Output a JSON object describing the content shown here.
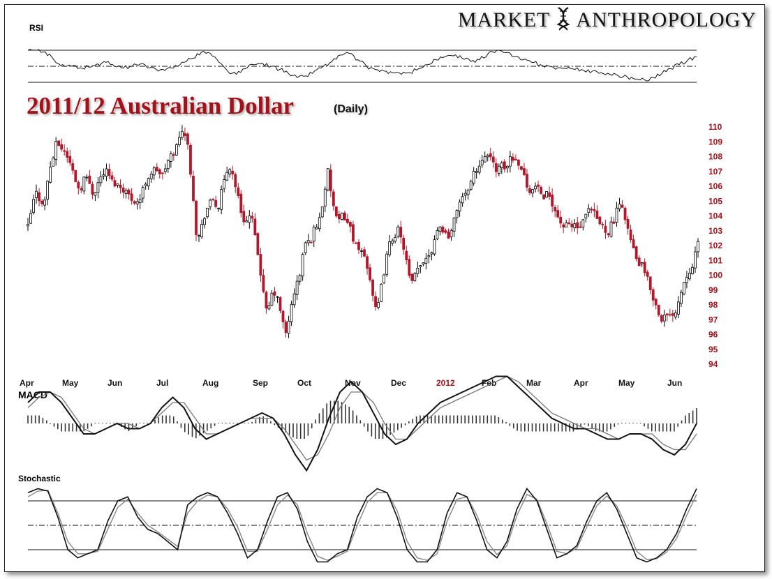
{
  "brand": {
    "word1": "Market",
    "word2": "Anthropology",
    "logo_icon": "dna-helix-icon"
  },
  "chart_data": [
    {
      "type": "candlestick",
      "title": "2011/12 Australian Dollar",
      "subtitle": "(Daily)",
      "y_ticks": [
        110,
        109,
        108,
        107,
        106,
        105,
        104,
        103,
        102,
        101,
        100,
        99,
        98,
        97,
        96,
        95,
        94
      ],
      "ylim": [
        94,
        110
      ],
      "x_ticks": [
        "Apr",
        "May",
        "Jun",
        "Jul",
        "Aug",
        "Sep",
        "Oct",
        "Nov",
        "Dec",
        "2012",
        "Feb",
        "Mar",
        "Apr",
        "May",
        "Jun"
      ],
      "x_tick_highlight": "2012",
      "colors": {
        "up": "#000000",
        "down": "#b3182a",
        "axis_text": "#a3121a"
      },
      "closes": [
        [
          0,
          103.2
        ],
        [
          5,
          104.4
        ],
        [
          10,
          105.6
        ],
        [
          16,
          105.0
        ],
        [
          22,
          104.9
        ],
        [
          27,
          106.8
        ],
        [
          33,
          107.9
        ],
        [
          38,
          109.0
        ],
        [
          44,
          108.5
        ],
        [
          50,
          108.2
        ],
        [
          56,
          107.4
        ],
        [
          62,
          106.5
        ],
        [
          68,
          105.6
        ],
        [
          74,
          106.6
        ],
        [
          80,
          106.3
        ],
        [
          86,
          105.4
        ],
        [
          92,
          106.2
        ],
        [
          98,
          106.8
        ],
        [
          104,
          107.0
        ],
        [
          110,
          106.3
        ],
        [
          116,
          106.1
        ],
        [
          122,
          105.9
        ],
        [
          128,
          105.7
        ],
        [
          134,
          105.2
        ],
        [
          140,
          105.0
        ],
        [
          146,
          104.9
        ],
        [
          152,
          105.9
        ],
        [
          158,
          106.6
        ],
        [
          164,
          107.0
        ],
        [
          170,
          107.1
        ],
        [
          176,
          106.6
        ],
        [
          182,
          107.4
        ],
        [
          188,
          108.0
        ],
        [
          194,
          108.5
        ],
        [
          198,
          109.0
        ],
        [
          202,
          109.9
        ],
        [
          206,
          109.5
        ],
        [
          210,
          108.6
        ],
        [
          214,
          106.8
        ],
        [
          218,
          104.8
        ],
        [
          222,
          102.2
        ],
        [
          226,
          102.8
        ],
        [
          230,
          103.6
        ],
        [
          234,
          104.4
        ],
        [
          238,
          104.6
        ],
        [
          242,
          105.2
        ],
        [
          246,
          104.7
        ],
        [
          250,
          104.5
        ],
        [
          254,
          105.5
        ],
        [
          258,
          106.3
        ],
        [
          262,
          107.0
        ],
        [
          266,
          107.3
        ],
        [
          270,
          106.5
        ],
        [
          274,
          105.8
        ],
        [
          278,
          104.6
        ],
        [
          282,
          103.9
        ],
        [
          286,
          103.5
        ],
        [
          290,
          103.9
        ],
        [
          294,
          103.8
        ],
        [
          298,
          102.5
        ],
        [
          302,
          101.4
        ],
        [
          306,
          100.0
        ],
        [
          310,
          98.4
        ],
        [
          314,
          97.2
        ],
        [
          318,
          98.2
        ],
        [
          322,
          98.9
        ],
        [
          326,
          98.6
        ],
        [
          330,
          97.9
        ],
        [
          334,
          97.0
        ],
        [
          338,
          95.8
        ],
        [
          342,
          96.7
        ],
        [
          346,
          98.1
        ],
        [
          350,
          98.6
        ],
        [
          354,
          99.6
        ],
        [
          358,
          100.1
        ],
        [
          362,
          101.8
        ],
        [
          366,
          102.3
        ],
        [
          370,
          102.0
        ],
        [
          374,
          102.9
        ],
        [
          378,
          103.2
        ],
        [
          382,
          103.6
        ],
        [
          386,
          104.5
        ],
        [
          390,
          105.8
        ],
        [
          394,
          106.9
        ],
        [
          398,
          105.6
        ],
        [
          402,
          104.4
        ],
        [
          406,
          103.5
        ],
        [
          410,
          103.6
        ],
        [
          414,
          104.2
        ],
        [
          418,
          103.6
        ],
        [
          422,
          103.4
        ],
        [
          426,
          102.6
        ],
        [
          430,
          102.1
        ],
        [
          434,
          101.4
        ],
        [
          438,
          101.6
        ],
        [
          442,
          101.2
        ],
        [
          446,
          100.5
        ],
        [
          450,
          99.6
        ],
        [
          454,
          98.3
        ],
        [
          458,
          97.2
        ],
        [
          462,
          98.6
        ],
        [
          466,
          99.7
        ],
        [
          470,
          100.9
        ],
        [
          474,
          101.9
        ],
        [
          478,
          102.4
        ],
        [
          482,
          102.7
        ],
        [
          486,
          103.0
        ],
        [
          490,
          102.3
        ],
        [
          494,
          101.8
        ],
        [
          498,
          100.6
        ],
        [
          502,
          99.4
        ],
        [
          506,
          99.5
        ],
        [
          510,
          100.2
        ],
        [
          514,
          100.4
        ],
        [
          518,
          100.9
        ],
        [
          522,
          101.1
        ],
        [
          526,
          101.4
        ],
        [
          530,
          101.6
        ],
        [
          534,
          102.5
        ],
        [
          538,
          103.1
        ],
        [
          542,
          103.2
        ],
        [
          546,
          103.0
        ],
        [
          550,
          102.6
        ],
        [
          554,
          102.7
        ],
        [
          558,
          103.2
        ],
        [
          562,
          104.2
        ],
        [
          566,
          104.9
        ],
        [
          570,
          105.2
        ],
        [
          574,
          105.2
        ],
        [
          578,
          105.9
        ],
        [
          582,
          106.3
        ],
        [
          586,
          107.0
        ],
        [
          590,
          107.0
        ],
        [
          594,
          107.6
        ],
        [
          598,
          108.1
        ],
        [
          602,
          108.2
        ],
        [
          606,
          107.8
        ],
        [
          610,
          107.6
        ],
        [
          614,
          107.2
        ],
        [
          618,
          107.1
        ],
        [
          622,
          107.3
        ],
        [
          626,
          107.2
        ],
        [
          630,
          107.3
        ],
        [
          634,
          108.1
        ],
        [
          638,
          107.8
        ],
        [
          642,
          107.6
        ],
        [
          646,
          107.6
        ],
        [
          650,
          106.9
        ],
        [
          654,
          106.2
        ],
        [
          658,
          105.8
        ],
        [
          662,
          105.6
        ],
        [
          666,
          105.9
        ],
        [
          670,
          106.0
        ],
        [
          674,
          105.2
        ],
        [
          678,
          104.8
        ],
        [
          682,
          105.5
        ],
        [
          686,
          105.3
        ],
        [
          690,
          104.6
        ],
        [
          694,
          104.1
        ],
        [
          698,
          103.7
        ],
        [
          702,
          103.3
        ],
        [
          706,
          103.2
        ],
        [
          710,
          103.4
        ],
        [
          714,
          103.2
        ],
        [
          718,
          103.4
        ],
        [
          722,
          103.1
        ],
        [
          726,
          103.2
        ],
        [
          730,
          103.6
        ],
        [
          734,
          104.1
        ],
        [
          738,
          104.3
        ],
        [
          742,
          104.3
        ],
        [
          746,
          103.8
        ],
        [
          750,
          103.5
        ],
        [
          754,
          103.3
        ],
        [
          758,
          103.0
        ],
        [
          762,
          102.9
        ],
        [
          766,
          103.4
        ],
        [
          770,
          103.6
        ],
        [
          774,
          104.4
        ],
        [
          778,
          104.6
        ],
        [
          782,
          104.5
        ],
        [
          786,
          103.5
        ],
        [
          790,
          102.6
        ],
        [
          794,
          101.9
        ],
        [
          798,
          101.1
        ],
        [
          802,
          100.8
        ],
        [
          806,
          100.6
        ],
        [
          810,
          100.1
        ],
        [
          814,
          99.6
        ],
        [
          818,
          99.0
        ],
        [
          822,
          98.3
        ],
        [
          826,
          97.7
        ],
        [
          830,
          97.2
        ],
        [
          834,
          97.0
        ],
        [
          838,
          97.3
        ],
        [
          842,
          97.0
        ],
        [
          846,
          97.4
        ],
        [
          850,
          97.5
        ],
        [
          854,
          98.2
        ],
        [
          858,
          98.9
        ],
        [
          862,
          99.6
        ],
        [
          866,
          100.1
        ],
        [
          870,
          100.4
        ],
        [
          874,
          100.9
        ],
        [
          878,
          101.7
        ],
        [
          880,
          102.0
        ]
      ]
    },
    {
      "type": "line",
      "title": "RSI",
      "series": [
        {
          "values": [
            70,
            70,
            68,
            58,
            52,
            50,
            48,
            49,
            53,
            55,
            50,
            48,
            50,
            53,
            48,
            44,
            47,
            51,
            55,
            60,
            68,
            66,
            55,
            44,
            40,
            47,
            52,
            54,
            50,
            46,
            41,
            36,
            38,
            44,
            50,
            56,
            64,
            66,
            58,
            50,
            46,
            44,
            42,
            40,
            42,
            47,
            52,
            58,
            62,
            63,
            60,
            56,
            58,
            66,
            70,
            67,
            62,
            58,
            55,
            52,
            50,
            48,
            47,
            46,
            45,
            44,
            42,
            40,
            38,
            37,
            34,
            33,
            36,
            41,
            47,
            52,
            58,
            62
          ]
        }
      ],
      "reference_lines": [
        "upper",
        "middle",
        "lower"
      ]
    },
    {
      "type": "line",
      "title": "MACD",
      "series": [
        {
          "values": [
            0.4,
            0.6,
            0.6,
            0.4,
            0.1,
            -0.2,
            -0.2,
            -0.1,
            0.0,
            -0.1,
            -0.1,
            0.0,
            0.3,
            0.5,
            0.3,
            -0.1,
            -0.3,
            -0.2,
            -0.1,
            0.0,
            0.1,
            0.2,
            0.1,
            -0.2,
            -0.6,
            -0.9,
            -0.5,
            0.1,
            0.6,
            0.8,
            0.6,
            0.2,
            -0.2,
            -0.4,
            -0.3,
            0.0,
            0.2,
            0.4,
            0.5,
            0.6,
            0.7,
            0.8,
            0.9,
            0.9,
            0.7,
            0.5,
            0.3,
            0.1,
            0.0,
            -0.1,
            -0.1,
            -0.2,
            -0.3,
            -0.3,
            -0.2,
            -0.2,
            -0.3,
            -0.5,
            -0.6,
            -0.4,
            0.0
          ]
        },
        {
          "values": [
            0.3,
            0.5,
            0.6,
            0.5,
            0.2,
            -0.1,
            -0.2,
            -0.1,
            0.0,
            0.0,
            -0.1,
            0.0,
            0.2,
            0.4,
            0.4,
            0.1,
            -0.2,
            -0.2,
            -0.1,
            0.0,
            0.1,
            0.1,
            0.1,
            -0.1,
            -0.4,
            -0.7,
            -0.6,
            -0.2,
            0.3,
            0.6,
            0.6,
            0.4,
            0.0,
            -0.3,
            -0.3,
            -0.1,
            0.1,
            0.3,
            0.4,
            0.5,
            0.6,
            0.7,
            0.8,
            0.9,
            0.8,
            0.6,
            0.4,
            0.2,
            0.1,
            0.0,
            -0.1,
            -0.1,
            -0.2,
            -0.3,
            -0.2,
            -0.2,
            -0.2,
            -0.4,
            -0.5,
            -0.5,
            -0.2
          ]
        }
      ],
      "histogram": true
    },
    {
      "type": "line",
      "title": "Stochastic",
      "series": [
        {
          "values": [
            90,
            95,
            92,
            60,
            20,
            10,
            15,
            20,
            55,
            80,
            85,
            60,
            45,
            40,
            30,
            20,
            75,
            85,
            90,
            85,
            65,
            40,
            10,
            20,
            55,
            85,
            90,
            70,
            30,
            5,
            5,
            15,
            20,
            60,
            85,
            95,
            90,
            60,
            20,
            5,
            5,
            20,
            65,
            90,
            85,
            55,
            20,
            10,
            30,
            70,
            95,
            80,
            45,
            10,
            15,
            25,
            55,
            80,
            90,
            70,
            40,
            10,
            5,
            10,
            20,
            40,
            70,
            95
          ]
        },
        {
          "values": [
            85,
            92,
            93,
            65,
            30,
            15,
            15,
            18,
            45,
            72,
            82,
            65,
            50,
            42,
            33,
            24,
            65,
            80,
            87,
            85,
            70,
            48,
            18,
            18,
            45,
            75,
            87,
            75,
            40,
            12,
            7,
            12,
            18,
            50,
            78,
            90,
            90,
            68,
            30,
            10,
            7,
            15,
            55,
            82,
            85,
            62,
            30,
            14,
            25,
            62,
            88,
            82,
            52,
            18,
            15,
            22,
            48,
            74,
            86,
            74,
            48,
            18,
            8,
            9,
            17,
            34,
            62,
            88
          ]
        }
      ],
      "reference_lines": [
        "upper",
        "middle",
        "lower"
      ]
    }
  ]
}
